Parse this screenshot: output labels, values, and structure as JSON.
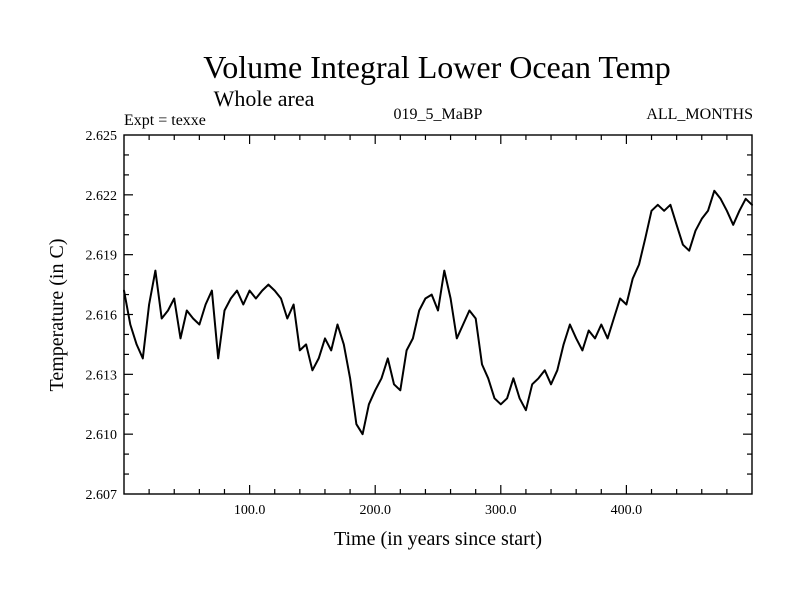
{
  "chart_data": {
    "type": "line",
    "title": "Volume Integral Lower Ocean Temp",
    "subtitle": "Whole area",
    "left_label": "Expt = texxe",
    "center_label": "019_5_MaBP",
    "right_label": "ALL_MONTHS",
    "xlabel": "Time (in years since start)",
    "ylabel": "Temperature (in C)",
    "xlim": [
      0,
      500
    ],
    "ylim": [
      2.607,
      2.625
    ],
    "x_ticks": [
      100,
      200,
      300,
      400
    ],
    "x_tick_labels": [
      "100.0",
      "200.0",
      "300.0",
      "400.0"
    ],
    "y_ticks": [
      2.607,
      2.61,
      2.613,
      2.616,
      2.619,
      2.622,
      2.625
    ],
    "y_tick_labels": [
      "2.607",
      "2.610",
      "2.613",
      "2.616",
      "2.619",
      "2.622",
      "2.625"
    ],
    "grid": false,
    "series": [
      {
        "name": "Volume Integral Lower Ocean Temp",
        "color": "#000000",
        "x": [
          0,
          5,
          10,
          15,
          20,
          25,
          30,
          35,
          40,
          45,
          50,
          55,
          60,
          65,
          70,
          75,
          80,
          85,
          90,
          95,
          100,
          105,
          110,
          115,
          120,
          125,
          130,
          135,
          140,
          145,
          150,
          155,
          160,
          165,
          170,
          175,
          180,
          185,
          190,
          195,
          200,
          205,
          210,
          215,
          220,
          225,
          230,
          235,
          240,
          245,
          250,
          255,
          260,
          265,
          270,
          275,
          280,
          285,
          290,
          295,
          300,
          305,
          310,
          315,
          320,
          325,
          330,
          335,
          340,
          345,
          350,
          355,
          360,
          365,
          370,
          375,
          380,
          385,
          390,
          395,
          400,
          405,
          410,
          415,
          420,
          425,
          430,
          435,
          440,
          445,
          450,
          455,
          460,
          465,
          470,
          475,
          480,
          485,
          490,
          495,
          500
        ],
        "values": [
          2.6172,
          2.6155,
          2.6145,
          2.6138,
          2.6165,
          2.6182,
          2.6158,
          2.6162,
          2.6168,
          2.6148,
          2.6162,
          2.6158,
          2.6155,
          2.6165,
          2.6172,
          2.6138,
          2.6162,
          2.6168,
          2.6172,
          2.6165,
          2.6172,
          2.6168,
          2.6172,
          2.6175,
          2.6172,
          2.6168,
          2.6158,
          2.6165,
          2.6142,
          2.6145,
          2.6132,
          2.6138,
          2.6148,
          2.6142,
          2.6155,
          2.6145,
          2.6128,
          2.6105,
          2.61,
          2.6115,
          2.6122,
          2.6128,
          2.6138,
          2.6125,
          2.6122,
          2.6142,
          2.6148,
          2.6162,
          2.6168,
          2.617,
          2.6162,
          2.6182,
          2.6168,
          2.6148,
          2.6155,
          2.6162,
          2.6158,
          2.6135,
          2.6128,
          2.6118,
          2.6115,
          2.6118,
          2.6128,
          2.6118,
          2.6112,
          2.6125,
          2.6128,
          2.6132,
          2.6125,
          2.6132,
          2.6145,
          2.6155,
          2.6148,
          2.6142,
          2.6152,
          2.6148,
          2.6155,
          2.6148,
          2.6158,
          2.6168,
          2.6165,
          2.6178,
          2.6185,
          2.6198,
          2.6212,
          2.6215,
          2.6212,
          2.6215,
          2.6205,
          2.6195,
          2.6192,
          2.6202,
          2.6208,
          2.6212,
          2.6222,
          2.6218,
          2.6212,
          2.6205,
          2.6212,
          2.6218,
          2.6215
        ]
      }
    ]
  }
}
